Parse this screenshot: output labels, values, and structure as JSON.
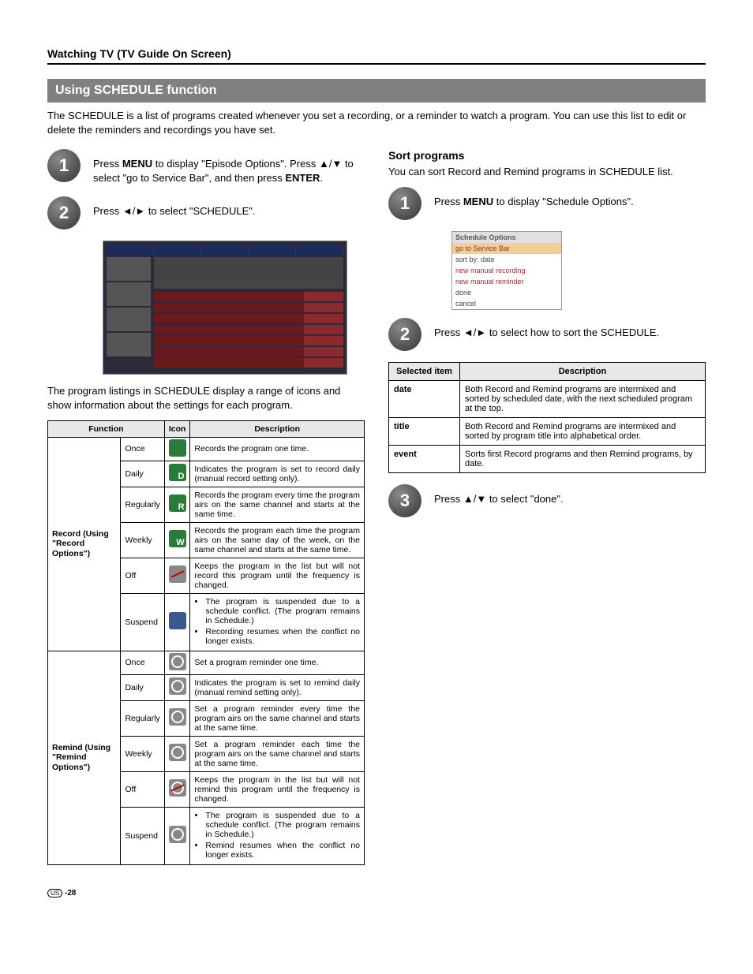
{
  "header": {
    "section": "Watching TV (TV Guide On Screen)"
  },
  "title": "Using SCHEDULE function",
  "intro": "The SCHEDULE is a list of programs created whenever you set a recording, or a reminder to watch a program. You can use this list to edit or delete the reminders and recordings you have set.",
  "left": {
    "step1": {
      "num": "1",
      "t1": "Press ",
      "b1": "MENU",
      "t2": " to display \"Episode Options\". Press ",
      "arrows1": "▲/▼",
      "t3": " to select \"go to Service Bar\", and then press ",
      "b2": "ENTER",
      "t4": "."
    },
    "step2": {
      "num": "2",
      "t1": "Press ",
      "arrows1": "◄/►",
      "t2": "  to select \"SCHEDULE\"."
    },
    "para": "The program listings in SCHEDULE display a range of icons and show information about the settings for each program.",
    "table": {
      "h_function": "Function",
      "h_icon": "Icon",
      "h_desc": "Description",
      "group1": "Record (Using \"Record Options\")",
      "group2": "Remind (Using \"Remind Options\")",
      "rows1": [
        {
          "label": "Once",
          "desc": "Records the program one time."
        },
        {
          "label": "Daily",
          "letter": "D",
          "desc": "Indicates the program is set to record daily (manual record setting only)."
        },
        {
          "label": "Regularly",
          "letter": "R",
          "desc": "Records the program every time the program airs on the same channel and starts at the same time."
        },
        {
          "label": "Weekly",
          "letter": "W",
          "desc": "Records the program each time the program airs on the same day of the week, on the same channel and starts at the same time."
        },
        {
          "label": "Off",
          "desc": "Keeps the program in the list but will not record this program until the frequency is changed."
        },
        {
          "label": "Suspend",
          "b1": "The program is suspended due to a schedule conflict. (The program remains in Schedule.)",
          "b2": "Recording resumes when the conflict no longer exists."
        }
      ],
      "rows2": [
        {
          "label": "Once",
          "desc": "Set a program reminder one time."
        },
        {
          "label": "Daily",
          "desc": "Indicates the program is set to remind daily (manual remind setting only)."
        },
        {
          "label": "Regularly",
          "desc": "Set a program reminder every time the program airs on the same channel and starts at the same time."
        },
        {
          "label": "Weekly",
          "desc": "Set a program reminder each time the program airs on the same channel and starts at the same time."
        },
        {
          "label": "Off",
          "desc": "Keeps the program in the list but will not remind this program until the frequency is changed."
        },
        {
          "label": "Suspend",
          "b1": "The program is suspended due to a schedule conflict. (The program remains in Schedule.)",
          "b2": "Remind resumes when the conflict no longer exists."
        }
      ]
    }
  },
  "right": {
    "subheading": "Sort programs",
    "intro": "You can sort Record and Remind programs in SCHEDULE list.",
    "step1": {
      "num": "1",
      "t1": "Press ",
      "b1": "MENU",
      "t2": " to display \"Schedule Options\"."
    },
    "menu": {
      "title": "Schedule Options",
      "items": [
        {
          "t": "go to Service Bar",
          "hl": true
        },
        {
          "t": "sort by:    date"
        },
        {
          "t": "new manual recording",
          "red": true
        },
        {
          "t": "new manual reminder",
          "red": true
        },
        {
          "t": "done"
        },
        {
          "t": "cancel"
        }
      ]
    },
    "step2": {
      "num": "2",
      "t1": "Press ",
      "arrows1": "◄/►",
      "t2": " to select how to sort the SCHEDULE."
    },
    "sort_table": {
      "h1": "Selected item",
      "h2": "Description",
      "rows": [
        {
          "k": "date",
          "d": "Both Record and Remind programs are intermixed and sorted by scheduled date, with the next scheduled program at the top."
        },
        {
          "k": "title",
          "d": "Both Record and Remind programs are intermixed and sorted by program title into alphabetical order."
        },
        {
          "k": "event",
          "d": "Sorts first Record programs and then Remind programs, by date."
        }
      ]
    },
    "step3": {
      "num": "3",
      "t1": "Press ",
      "arrows1": "▲/▼",
      "t2": " to select \"done\"."
    }
  },
  "footer": {
    "region": "US",
    "page": "-28"
  }
}
